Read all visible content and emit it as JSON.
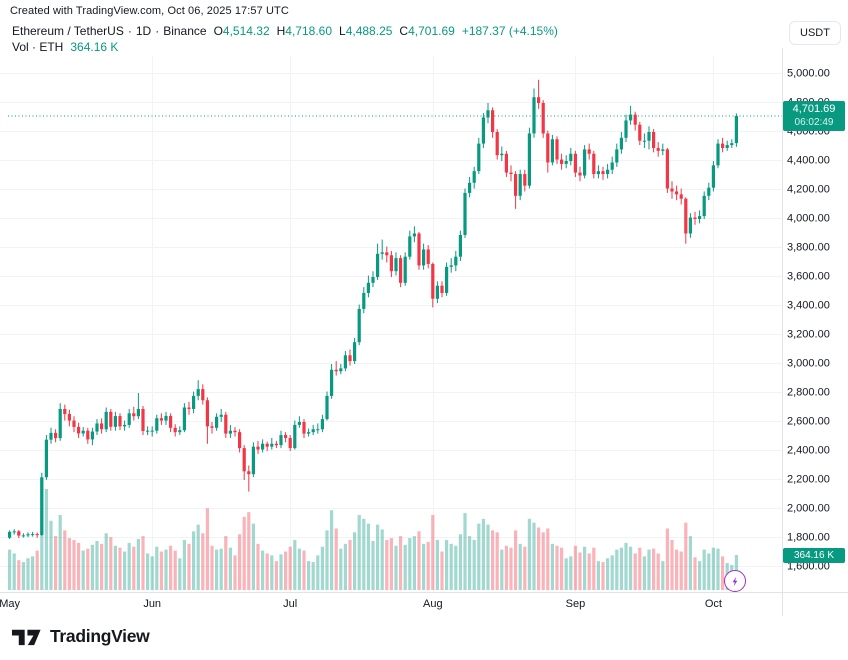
{
  "header": {
    "attribution": "Created with TradingView.com, Oct 06, 2025 17:57 UTC"
  },
  "legend": {
    "symbol": "Ethereum / TetherUS",
    "separator": "·",
    "interval": "1D",
    "exchange": "Binance",
    "ohlc": {
      "o_label": "O",
      "o": "4,514.32",
      "h_label": "H",
      "h": "4,718.60",
      "l_label": "L",
      "l": "4,488.25",
      "c_label": "C",
      "c": "4,701.69",
      "change": "+187.37 (+4.15%)"
    },
    "volume_label": "Vol · ETH",
    "volume_value": "364.16 K"
  },
  "axis": {
    "quote_currency": "USDT"
  },
  "badges": {
    "price": {
      "value": "4,701.69",
      "countdown": "06:02:49"
    },
    "volume": "364.16 K"
  },
  "footer": {
    "brand": "TradingView"
  },
  "colors": {
    "up": "#089981",
    "down": "#F23645",
    "grid": "#f0f3f7",
    "axis_border": "#e0e3eb",
    "axis_text": "#131722",
    "badge": "#089981",
    "flash_purple": "#a52bc5",
    "volume_opacity": 0.38
  },
  "chart_data": {
    "type": "candlestick",
    "symbol": "Ethereum / TetherUS",
    "interval": "1D",
    "exchange": "Binance",
    "quote_currency": "USDT",
    "start_date": "2025-05-01",
    "end_date": "2025-10-06",
    "legend_note": "volumes in thousands of ETH",
    "last": {
      "open": 4514.32,
      "high": 4718.6,
      "low": 4488.25,
      "close": 4701.69,
      "change": 187.37,
      "change_pct": 4.15,
      "volume_k": 364.16,
      "countdown": "06:02:49"
    },
    "y_axis": {
      "side": "right",
      "range": [
        1550,
        5060
      ],
      "ticks": [
        {
          "v": 5000,
          "label": "5,000.00"
        },
        {
          "v": 4800,
          "label": "4,800.00"
        },
        {
          "v": 4600,
          "label": "4,600.00"
        },
        {
          "v": 4400,
          "label": "4,400.00"
        },
        {
          "v": 4200,
          "label": "4,200.00"
        },
        {
          "v": 4000,
          "label": "4,000.00"
        },
        {
          "v": 3800,
          "label": "3,800.00"
        },
        {
          "v": 3600,
          "label": "3,600.00"
        },
        {
          "v": 3400,
          "label": "3,400.00"
        },
        {
          "v": 3200,
          "label": "3,200.00"
        },
        {
          "v": 3000,
          "label": "3,000.00"
        },
        {
          "v": 2800,
          "label": "2,800.00"
        },
        {
          "v": 2600,
          "label": "2,600.00"
        },
        {
          "v": 2400,
          "label": "2,400.00"
        },
        {
          "v": 2200,
          "label": "2,200.00"
        },
        {
          "v": 2000,
          "label": "2,000.00"
        },
        {
          "v": 1800,
          "label": "1,800.00"
        },
        {
          "v": 1600,
          "label": "1,600.00"
        }
      ]
    },
    "x_axis": {
      "month_ticks": [
        {
          "label": "May",
          "day": 0
        },
        {
          "label": "Jun",
          "day": 31
        },
        {
          "label": "Jul",
          "day": 61
        },
        {
          "label": "Aug",
          "day": 92
        },
        {
          "label": "Sep",
          "day": 123
        },
        {
          "label": "Oct",
          "day": 153
        }
      ]
    },
    "candles": [
      [
        1793,
        1844,
        1784,
        1833,
        420
      ],
      [
        1833,
        1852,
        1814,
        1837,
        380
      ],
      [
        1837,
        1846,
        1791,
        1808,
        310
      ],
      [
        1808,
        1824,
        1794,
        1809,
        290
      ],
      [
        1809,
        1831,
        1796,
        1817,
        330
      ],
      [
        1817,
        1833,
        1801,
        1818,
        350
      ],
      [
        1818,
        1829,
        1792,
        1812,
        410
      ],
      [
        1812,
        2241,
        1806,
        2210,
        1160
      ],
      [
        2210,
        2501,
        2192,
        2469,
        1050
      ],
      [
        2469,
        2551,
        2441,
        2516,
        720
      ],
      [
        2516,
        2541,
        2451,
        2480,
        560
      ],
      [
        2480,
        2721,
        2461,
        2681,
        780
      ],
      [
        2681,
        2711,
        2601,
        2646,
        620
      ],
      [
        2646,
        2676,
        2561,
        2601,
        540
      ],
      [
        2601,
        2631,
        2521,
        2557,
        520
      ],
      [
        2557,
        2586,
        2481,
        2512,
        490
      ],
      [
        2512,
        2556,
        2491,
        2531,
        410
      ],
      [
        2531,
        2551,
        2441,
        2471,
        430
      ],
      [
        2471,
        2551,
        2431,
        2525,
        470
      ],
      [
        2525,
        2611,
        2501,
        2581,
        510
      ],
      [
        2581,
        2616,
        2511,
        2541,
        480
      ],
      [
        2541,
        2691,
        2521,
        2661,
        590
      ],
      [
        2661,
        2681,
        2531,
        2558,
        550
      ],
      [
        2558,
        2661,
        2531,
        2632,
        460
      ],
      [
        2632,
        2651,
        2536,
        2561,
        440
      ],
      [
        2561,
        2601,
        2531,
        2571,
        400
      ],
      [
        2571,
        2681,
        2551,
        2651,
        490
      ],
      [
        2651,
        2696,
        2601,
        2631,
        450
      ],
      [
        2631,
        2791,
        2611,
        2681,
        530
      ],
      [
        2681,
        2701,
        2501,
        2529,
        560
      ],
      [
        2529,
        2561,
        2501,
        2531,
        380
      ],
      [
        2531,
        2561,
        2491,
        2531,
        350
      ],
      [
        2531,
        2641,
        2511,
        2617,
        450
      ],
      [
        2617,
        2651,
        2571,
        2601,
        400
      ],
      [
        2601,
        2661,
        2571,
        2633,
        420
      ],
      [
        2633,
        2651,
        2521,
        2551,
        460
      ],
      [
        2551,
        2576,
        2491,
        2521,
        410
      ],
      [
        2521,
        2561,
        2501,
        2534,
        330
      ],
      [
        2534,
        2721,
        2521,
        2691,
        520
      ],
      [
        2691,
        2731,
        2641,
        2681,
        480
      ],
      [
        2681,
        2801,
        2651,
        2771,
        610
      ],
      [
        2771,
        2879,
        2741,
        2818,
        680
      ],
      [
        2818,
        2851,
        2711,
        2741,
        590
      ],
      [
        2741,
        2761,
        2441,
        2561,
        850
      ],
      [
        2561,
        2591,
        2511,
        2551,
        460
      ],
      [
        2551,
        2651,
        2531,
        2627,
        420
      ],
      [
        2627,
        2681,
        2591,
        2641,
        430
      ],
      [
        2641,
        2661,
        2481,
        2511,
        560
      ],
      [
        2511,
        2571,
        2481,
        2531,
        440
      ],
      [
        2531,
        2556,
        2491,
        2521,
        360
      ],
      [
        2521,
        2541,
        2381,
        2411,
        580
      ],
      [
        2411,
        2431,
        2191,
        2251,
        760
      ],
      [
        2251,
        2291,
        2111,
        2231,
        810
      ],
      [
        2231,
        2451,
        2211,
        2421,
        690
      ],
      [
        2421,
        2461,
        2371,
        2401,
        480
      ],
      [
        2401,
        2471,
        2381,
        2441,
        410
      ],
      [
        2441,
        2456,
        2391,
        2421,
        380
      ],
      [
        2421,
        2481,
        2401,
        2441,
        360
      ],
      [
        2441,
        2461,
        2411,
        2431,
        300
      ],
      [
        2431,
        2531,
        2411,
        2501,
        370
      ],
      [
        2501,
        2521,
        2451,
        2481,
        400
      ],
      [
        2481,
        2501,
        2391,
        2411,
        450
      ],
      [
        2411,
        2601,
        2401,
        2571,
        520
      ],
      [
        2571,
        2631,
        2551,
        2591,
        430
      ],
      [
        2591,
        2611,
        2481,
        2511,
        410
      ],
      [
        2511,
        2546,
        2491,
        2521,
        300
      ],
      [
        2521,
        2571,
        2501,
        2541,
        290
      ],
      [
        2541,
        2581,
        2511,
        2541,
        360
      ],
      [
        2541,
        2641,
        2521,
        2611,
        450
      ],
      [
        2611,
        2801,
        2601,
        2771,
        620
      ],
      [
        2771,
        2991,
        2751,
        2951,
        830
      ],
      [
        2951,
        3011,
        2911,
        2941,
        640
      ],
      [
        2941,
        2991,
        2921,
        2961,
        430
      ],
      [
        2961,
        3081,
        2941,
        3051,
        480
      ],
      [
        3051,
        3091,
        2981,
        3011,
        520
      ],
      [
        3011,
        3171,
        2991,
        3141,
        600
      ],
      [
        3141,
        3401,
        3121,
        3371,
        780
      ],
      [
        3371,
        3521,
        3341,
        3481,
        740
      ],
      [
        3481,
        3601,
        3451,
        3551,
        690
      ],
      [
        3551,
        3631,
        3521,
        3591,
        510
      ],
      [
        3591,
        3821,
        3571,
        3751,
        680
      ],
      [
        3751,
        3849,
        3711,
        3761,
        630
      ],
      [
        3761,
        3801,
        3691,
        3741,
        520
      ],
      [
        3741,
        3771,
        3591,
        3631,
        540
      ],
      [
        3631,
        3761,
        3601,
        3721,
        460
      ],
      [
        3721,
        3741,
        3521,
        3551,
        560
      ],
      [
        3551,
        3761,
        3531,
        3731,
        470
      ],
      [
        3731,
        3911,
        3711,
        3871,
        540
      ],
      [
        3871,
        3941,
        3831,
        3891,
        560
      ],
      [
        3891,
        3901,
        3641,
        3671,
        610
      ],
      [
        3671,
        3821,
        3641,
        3781,
        480
      ],
      [
        3781,
        3811,
        3651,
        3681,
        500
      ],
      [
        3681,
        3691,
        3381,
        3441,
        780
      ],
      [
        3441,
        3561,
        3411,
        3531,
        520
      ],
      [
        3531,
        3561,
        3451,
        3481,
        400
      ],
      [
        3481,
        3691,
        3461,
        3661,
        520
      ],
      [
        3661,
        3721,
        3621,
        3671,
        480
      ],
      [
        3671,
        3771,
        3631,
        3731,
        460
      ],
      [
        3731,
        3911,
        3701,
        3881,
        580
      ],
      [
        3881,
        4201,
        3861,
        4171,
        800
      ],
      [
        4171,
        4281,
        4141,
        4241,
        560
      ],
      [
        4241,
        4351,
        4201,
        4321,
        520
      ],
      [
        4321,
        4551,
        4301,
        4511,
        690
      ],
      [
        4511,
        4721,
        4481,
        4691,
        740
      ],
      [
        4691,
        4791,
        4651,
        4741,
        680
      ],
      [
        4741,
        4761,
        4551,
        4591,
        620
      ],
      [
        4591,
        4611,
        4401,
        4431,
        600
      ],
      [
        4431,
        4491,
        4391,
        4441,
        420
      ],
      [
        4441,
        4461,
        4281,
        4311,
        460
      ],
      [
        4311,
        4361,
        4251,
        4301,
        440
      ],
      [
        4301,
        4321,
        4061,
        4151,
        620
      ],
      [
        4151,
        4331,
        4121,
        4301,
        480
      ],
      [
        4301,
        4331,
        4181,
        4221,
        450
      ],
      [
        4221,
        4621,
        4201,
        4581,
        740
      ],
      [
        4581,
        4891,
        4551,
        4831,
        700
      ],
      [
        4831,
        4951,
        4751,
        4791,
        650
      ],
      [
        4791,
        4811,
        4551,
        4581,
        600
      ],
      [
        4581,
        4601,
        4311,
        4381,
        640
      ],
      [
        4381,
        4571,
        4361,
        4541,
        480
      ],
      [
        4541,
        4561,
        4371,
        4401,
        460
      ],
      [
        4401,
        4441,
        4331,
        4371,
        440
      ],
      [
        4371,
        4431,
        4341,
        4391,
        330
      ],
      [
        4391,
        4481,
        4361,
        4441,
        350
      ],
      [
        4441,
        4461,
        4281,
        4311,
        460
      ],
      [
        4311,
        4351,
        4251,
        4291,
        390
      ],
      [
        4291,
        4501,
        4271,
        4471,
        450
      ],
      [
        4471,
        4511,
        4401,
        4441,
        380
      ],
      [
        4441,
        4461,
        4271,
        4301,
        440
      ],
      [
        4301,
        4361,
        4271,
        4321,
        300
      ],
      [
        4321,
        4351,
        4261,
        4301,
        290
      ],
      [
        4301,
        4371,
        4271,
        4331,
        330
      ],
      [
        4331,
        4421,
        4301,
        4381,
        360
      ],
      [
        4381,
        4511,
        4351,
        4471,
        420
      ],
      [
        4471,
        4591,
        4441,
        4551,
        440
      ],
      [
        4551,
        4711,
        4521,
        4671,
        490
      ],
      [
        4671,
        4771,
        4641,
        4711,
        450
      ],
      [
        4711,
        4731,
        4601,
        4641,
        380
      ],
      [
        4641,
        4661,
        4501,
        4531,
        440
      ],
      [
        4531,
        4581,
        4481,
        4531,
        350
      ],
      [
        4531,
        4631,
        4471,
        4591,
        420
      ],
      [
        4591,
        4611,
        4451,
        4481,
        430
      ],
      [
        4481,
        4521,
        4421,
        4461,
        380
      ],
      [
        4461,
        4511,
        4431,
        4471,
        300
      ],
      [
        4471,
        4481,
        4171,
        4201,
        640
      ],
      [
        4201,
        4251,
        4131,
        4181,
        520
      ],
      [
        4181,
        4221,
        4121,
        4161,
        420
      ],
      [
        4161,
        4201,
        4091,
        4131,
        400
      ],
      [
        4131,
        4141,
        3821,
        3891,
        700
      ],
      [
        3891,
        4031,
        3861,
        4001,
        560
      ],
      [
        4001,
        4041,
        3951,
        3991,
        340
      ],
      [
        3991,
        4051,
        3961,
        4011,
        300
      ],
      [
        4011,
        4181,
        3991,
        4151,
        420
      ],
      [
        4151,
        4241,
        4121,
        4207,
        380
      ],
      [
        4207,
        4391,
        4181,
        4361,
        440
      ],
      [
        4361,
        4541,
        4341,
        4511,
        430
      ],
      [
        4511,
        4551,
        4451,
        4481,
        350
      ],
      [
        4481,
        4531,
        4461,
        4501,
        280
      ],
      [
        4501,
        4541,
        4481,
        4514,
        260
      ],
      [
        4514.32,
        4718.6,
        4488.25,
        4701.69,
        364.16
      ]
    ]
  }
}
